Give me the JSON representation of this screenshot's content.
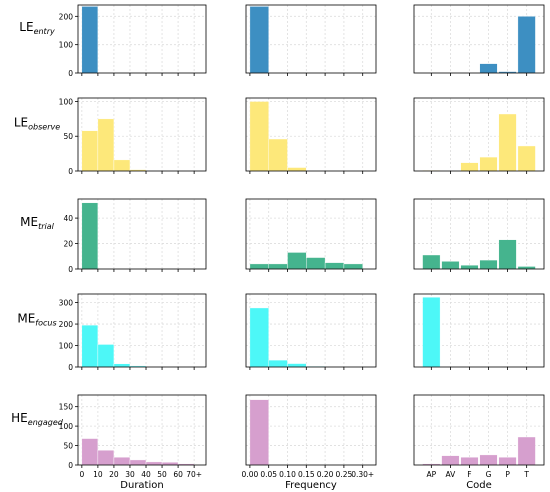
{
  "colors": {
    "entry": "#3d8fc2",
    "observe": "#fde87a",
    "trial": "#45b48e",
    "focus": "#4df7f7",
    "engaged": "#d69fce",
    "grid": "#dddddd",
    "axis": "#000000"
  },
  "chart_data": {
    "type": "bar",
    "grid": true,
    "columns": [
      {
        "key": "duration",
        "xlabel": "Duration",
        "tick_labels": [
          "0",
          "10",
          "20",
          "30",
          "40",
          "50",
          "60",
          "70+"
        ],
        "categories": [
          "0-10",
          "10-20",
          "20-30",
          "30-40",
          "40-50",
          "50-60",
          "60-70"
        ]
      },
      {
        "key": "frequency",
        "xlabel": "Frequency",
        "tick_labels": [
          "0.00",
          "0.05",
          "0.10",
          "0.15",
          "0.20",
          "0.25",
          "0.30+"
        ],
        "categories": [
          "0.00-0.05",
          "0.05-0.10",
          "0.10-0.15",
          "0.15-0.20",
          "0.20-0.25",
          "0.25-0.30"
        ]
      },
      {
        "key": "code",
        "xlabel": "Code",
        "tick_labels": [
          "AP",
          "AV",
          "F",
          "G",
          "P",
          "T"
        ],
        "categories": [
          "AP",
          "AV",
          "F",
          "G",
          "P",
          "T"
        ]
      }
    ],
    "rows": [
      {
        "key": "entry",
        "label_main": "LE",
        "label_sub": "entry",
        "ylim": [
          0,
          240
        ],
        "yticks": [
          0,
          100,
          200
        ],
        "values": {
          "duration": [
            235,
            0,
            0,
            0,
            0,
            0,
            0
          ],
          "frequency": [
            235,
            0,
            0,
            0,
            0,
            0
          ],
          "code": [
            0,
            0,
            0,
            33,
            5,
            200
          ]
        }
      },
      {
        "key": "observe",
        "label_main": "LE",
        "label_sub": "observe",
        "ylim": [
          0,
          105
        ],
        "yticks": [
          0,
          50,
          100
        ],
        "values": {
          "duration": [
            58,
            75,
            16,
            2,
            0,
            0,
            0
          ],
          "frequency": [
            100,
            46,
            5,
            0,
            0,
            0
          ],
          "code": [
            1,
            0,
            12,
            20,
            82,
            36
          ]
        }
      },
      {
        "key": "trial",
        "label_main": "ME",
        "label_sub": "trial",
        "ylim": [
          0,
          55
        ],
        "yticks": [
          0,
          20,
          40
        ],
        "values": {
          "duration": [
            52,
            0,
            0,
            0,
            0,
            0,
            0
          ],
          "frequency": [
            4,
            4,
            13,
            9,
            5,
            4
          ],
          "code": [
            11,
            6,
            3,
            7,
            23,
            2
          ]
        }
      },
      {
        "key": "focus",
        "label_main": "ME",
        "label_sub": "focus",
        "ylim": [
          0,
          340
        ],
        "yticks": [
          0,
          100,
          200,
          300
        ],
        "values": {
          "duration": [
            195,
            105,
            15,
            5,
            0,
            0,
            0
          ],
          "frequency": [
            275,
            32,
            16,
            3,
            0,
            0
          ],
          "code": [
            325,
            0,
            0,
            0,
            0,
            0
          ]
        }
      },
      {
        "key": "engaged",
        "label_main": "HE",
        "label_sub": "engaged",
        "ylim": [
          0,
          180
        ],
        "yticks": [
          0,
          50,
          100,
          150
        ],
        "values": {
          "duration": [
            68,
            38,
            20,
            13,
            8,
            7,
            3
          ],
          "frequency": [
            168,
            0,
            0,
            0,
            0,
            0
          ],
          "code": [
            3,
            24,
            20,
            26,
            20,
            72
          ]
        }
      }
    ]
  }
}
